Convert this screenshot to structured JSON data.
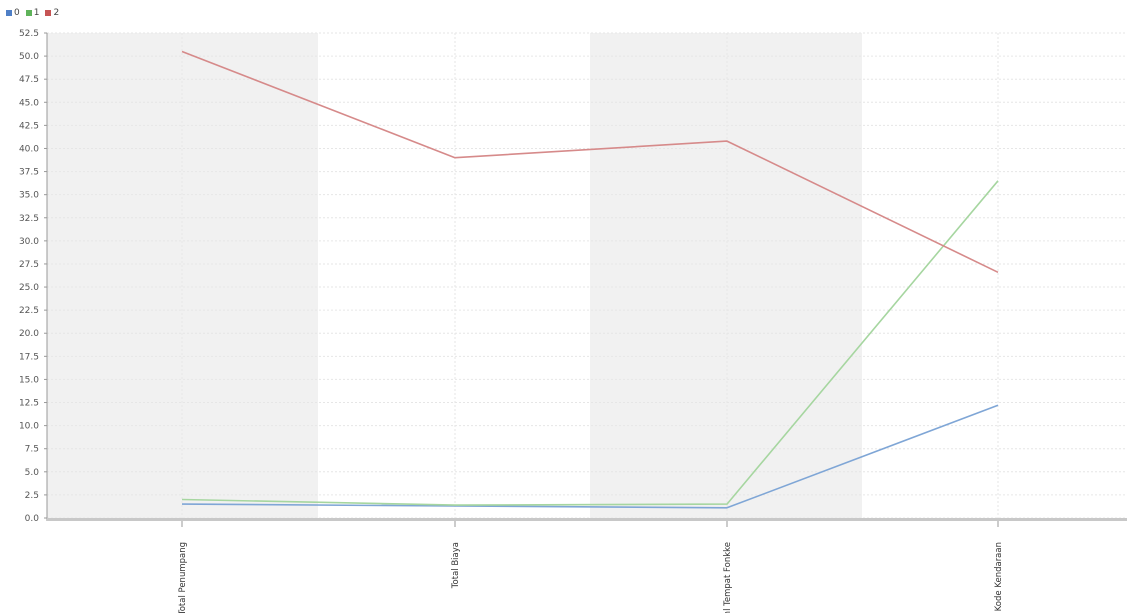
{
  "chart_data": {
    "type": "line",
    "categories": [
      "Total Penumpang",
      "Total Biaya",
      "Jml Tempat Fonkke",
      "Kode Kendaraan"
    ],
    "series": [
      {
        "name": "0",
        "values": [
          1.5,
          1.3,
          1.1,
          12.2
        ]
      },
      {
        "name": "1",
        "values": [
          2.0,
          1.4,
          1.5,
          36.5
        ]
      },
      {
        "name": "2",
        "values": [
          50.5,
          39.0,
          40.8,
          26.6
        ]
      }
    ],
    "yticks": [
      "0.0",
      "2.5",
      "5.0",
      "7.5",
      "10.0",
      "12.5",
      "15.0",
      "17.5",
      "20.0",
      "22.5",
      "25.0",
      "27.5",
      "30.0",
      "32.5",
      "35.0",
      "37.5",
      "40.0",
      "42.5",
      "45.0",
      "47.5",
      "50.0",
      "52.5"
    ],
    "ylim": [
      0,
      52.5
    ],
    "title": "",
    "xlabel": "",
    "ylabel": "",
    "legend_position": "top-left",
    "grid": true
  },
  "colors": {
    "0": "#7fa6d6",
    "1": "#a6d6a0",
    "2": "#d68a8a",
    "band": "#f1f1f1",
    "grid": "#e6e6e6",
    "axis": "#999999"
  }
}
